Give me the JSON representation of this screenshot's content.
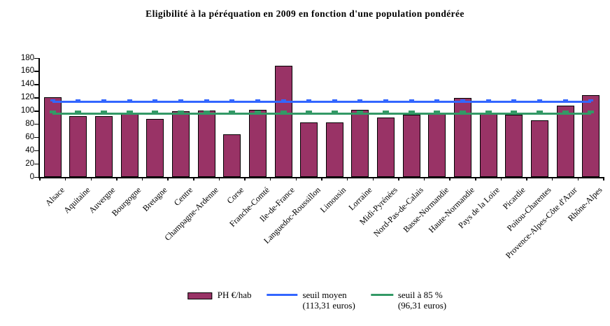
{
  "chart_data": {
    "type": "bar",
    "title": "Eligibilité à la péréquation en 2009 en fonction d'une population pondérée",
    "categories": [
      "Alsace",
      "Aquitaine",
      "Auvergne",
      "Bourgogne",
      "Bretagne",
      "Centre",
      "Champagne-Ardenne",
      "Corse",
      "Franche-Comté",
      "Ile-de-France",
      "Languedoc-Roussillon",
      "Limousin",
      "Lorraine",
      "Midi-Pyrénées",
      "Nord-Pas-de-Calais",
      "Basse-Normandie",
      "Haute-Normandie",
      "Pays de la Loire",
      "Picardie",
      "Poitou-Charentes",
      "Provence-Alpes-Côte d'Azur",
      "Rhône-Alpes"
    ],
    "series": [
      {
        "name": "PH €/hab",
        "type": "bar",
        "color": "#993366",
        "values": [
          121,
          92,
          92,
          97,
          88,
          100,
          101,
          65,
          102,
          168,
          83,
          83,
          102,
          90,
          94,
          97,
          120,
          95,
          94,
          86,
          108,
          124
        ]
      },
      {
        "name": "seuil moyen (113,31 euros)",
        "type": "line",
        "color": "#3366FF",
        "value": 113.31
      },
      {
        "name": "seuil à 85 % (96,31 euros)",
        "type": "line",
        "color": "#339966",
        "value": 96.31
      }
    ],
    "ylim": [
      0,
      180
    ],
    "y_ticks": [
      0,
      20,
      40,
      60,
      80,
      100,
      120,
      140,
      160,
      180
    ],
    "grid": false,
    "legend_position": "bottom"
  },
  "legend": {
    "items": [
      {
        "swatch": "bar",
        "color": "#993366",
        "label": "PH €/hab",
        "sublabel": ""
      },
      {
        "swatch": "line",
        "color": "#3366FF",
        "label": "seuil moyen",
        "sublabel": "(113,31 euros)"
      },
      {
        "swatch": "line",
        "color": "#339966",
        "label": "seuil à 85 %",
        "sublabel": "(96,31 euros)"
      }
    ]
  }
}
